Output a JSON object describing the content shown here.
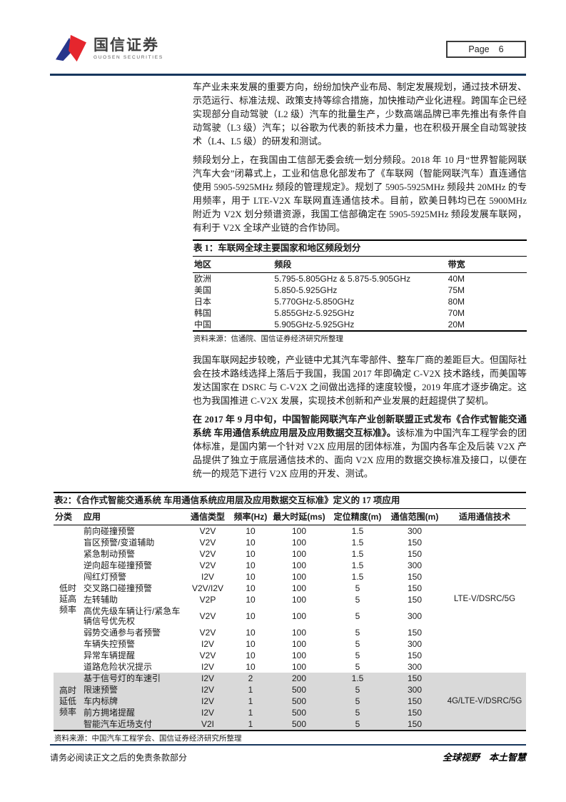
{
  "header": {
    "brand_name": "国信证券",
    "brand_subtitle": "GUOSEN SECURITIES",
    "page_label": "Page",
    "page_number": "6"
  },
  "paragraphs": {
    "p1": "车产业未来发展的重要方向，纷纷加快产业布局、制定发展规划，通过技术研发、示范运行、标准法规、政策支持等综合措施，加快推动产业化进程。跨国车企已经实现部分自动驾驶（L2 级）汽车的批量生产，少数高端品牌已率先推出有条件自动驾驶（L3 级）汽车；以谷歌为代表的新技术力量，也在积极开展全自动驾驶技术（L4、L5 级）的研发和测试。",
    "p2": "频段划分上，在我国由工信部无委会统一划分频段。2018 年 10 月“世界智能网联汽车大会”闭幕式上，工业和信息化部发布了《车联网（智能网联汽车）直连通信使用 5905-5925MHz 频段的管理规定》。规划了 5905-5925MHz 频段共 20MHz 的专用频率，用于 LTE-V2X 车联网直连通信技术。目前，欧美日韩均已在 5900MHz 附近为 V2X 划分频谱资源，我国工信部确定在 5905-5925MHz 频段发展车联网，有利于 V2X 全球产业链的合作协同。",
    "p3": "我国车联网起步较晚，产业链中尤其汽车零部件、整车厂商的差距巨大。但国际社会在技术路线选择上落后于我国，我国 2017 年即确定 C-V2X 技术路线，而美国等发达国家在 DSRC 与 C-V2X 之间做出选择的速度较慢，2019 年底才逐步确定。这也为我国推进 C-V2X 发展，实现技术创新和产业发展的赶超提供了契机。",
    "p4_bold": "在 2017 年 9 月中旬，中国智能网联汽车产业创新联盟正式发布《合作式智能交通系统 车用通信系统应用层及应用数据交互标准》。",
    "p4_rest": "该标准为中国汽车工程学会的团体标准，是国内第一个针对 V2X 应用层的团体标准，为国内各车企及后装 V2X 产品提供了独立于底层通信技术的、面向 V2X 应用的数据交换标准及接口，以便在统一的规范下进行 V2X 应用的开发、测试。"
  },
  "table1": {
    "title": "表 1：车联网全球主要国家和地区频段划分",
    "headers": [
      "地区",
      "频段",
      "带宽"
    ],
    "rows": [
      [
        "欧洲",
        "5.795-5.805GHz & 5.875-5.905GHz",
        "40M"
      ],
      [
        "美国",
        "5.850-5.925GHz",
        "75M"
      ],
      [
        "日本",
        "5.770GHz-5.850GHz",
        "80M"
      ],
      [
        "韩国",
        "5.855GHz-5.925GHz",
        "70M"
      ],
      [
        "中国",
        "5.905GHz-5.925GHz",
        "20M"
      ]
    ],
    "source": "资料来源：信通院、国信证券经济研究所整理"
  },
  "table2": {
    "title": "表2：《合作式智能交通系统 车用通信系统应用层及应用数据交互标准》定义的 17 项应用",
    "headers": [
      "分类",
      "应用",
      "通信类型",
      "频率(Hz)",
      "最大时延(ms)",
      "定位精度(m)",
      "通信范围(m)",
      "适用通信技术"
    ],
    "groups": [
      {
        "category": "低时延高频率",
        "tech": "LTE-V/DSRC/5G",
        "shaded": false,
        "rows": [
          [
            "前向碰撞预警",
            "V2V",
            "10",
            "100",
            "1.5",
            "300"
          ],
          [
            "盲区预警/变道辅助",
            "V2V",
            "10",
            "100",
            "1.5",
            "150"
          ],
          [
            "紧急制动预警",
            "V2V",
            "10",
            "100",
            "1.5",
            "150"
          ],
          [
            "逆向超车碰撞预警",
            "V2V",
            "10",
            "100",
            "1.5",
            "300"
          ],
          [
            "闯红灯预警",
            "I2V",
            "10",
            "100",
            "1.5",
            "150"
          ],
          [
            "交叉路口碰撞预警",
            "V2V/I2V",
            "10",
            "100",
            "5",
            "150"
          ],
          [
            "左转辅助",
            "V2P",
            "10",
            "100",
            "5",
            "150"
          ],
          [
            "高优先级车辆让行/紧急车辆信号优先权",
            "V2V",
            "10",
            "100",
            "5",
            "300"
          ],
          [
            "弱势交通参与者预警",
            "V2V",
            "10",
            "100",
            "5",
            "150"
          ],
          [
            "车辆失控预警",
            "I2V",
            "10",
            "100",
            "5",
            "300"
          ],
          [
            "异常车辆提醒",
            "V2V",
            "10",
            "100",
            "5",
            "150"
          ],
          [
            "道路危险状况提示",
            "I2V",
            "10",
            "100",
            "5",
            "300"
          ]
        ]
      },
      {
        "category": "高时延低频率",
        "tech": "4G/LTE-V/DSRC/5G",
        "shaded": true,
        "rows": [
          [
            "基于信号灯的车速引",
            "I2V",
            "2",
            "200",
            "1.5",
            "150"
          ],
          [
            "限速预警",
            "I2V",
            "1",
            "500",
            "5",
            "300"
          ],
          [
            "车内标牌",
            "I2V",
            "1",
            "500",
            "5",
            "150"
          ],
          [
            "前方拥堵提醒",
            "I2V",
            "1",
            "500",
            "5",
            "150"
          ],
          [
            "智能汽车近场支付",
            "V2I",
            "1",
            "500",
            "5",
            "150"
          ]
        ]
      }
    ],
    "source": "资料来源：中国汽车工程学会、国信证券经济研究所整理"
  },
  "footer": {
    "left": "请务必阅读正文之后的免责条款部分",
    "right": "全球视野　本土智慧"
  },
  "colors": {
    "rule_navy": "#17365D",
    "logo_blue": "#28368C",
    "logo_red": "#E5262D",
    "shaded_row": "#D9D9D9"
  }
}
